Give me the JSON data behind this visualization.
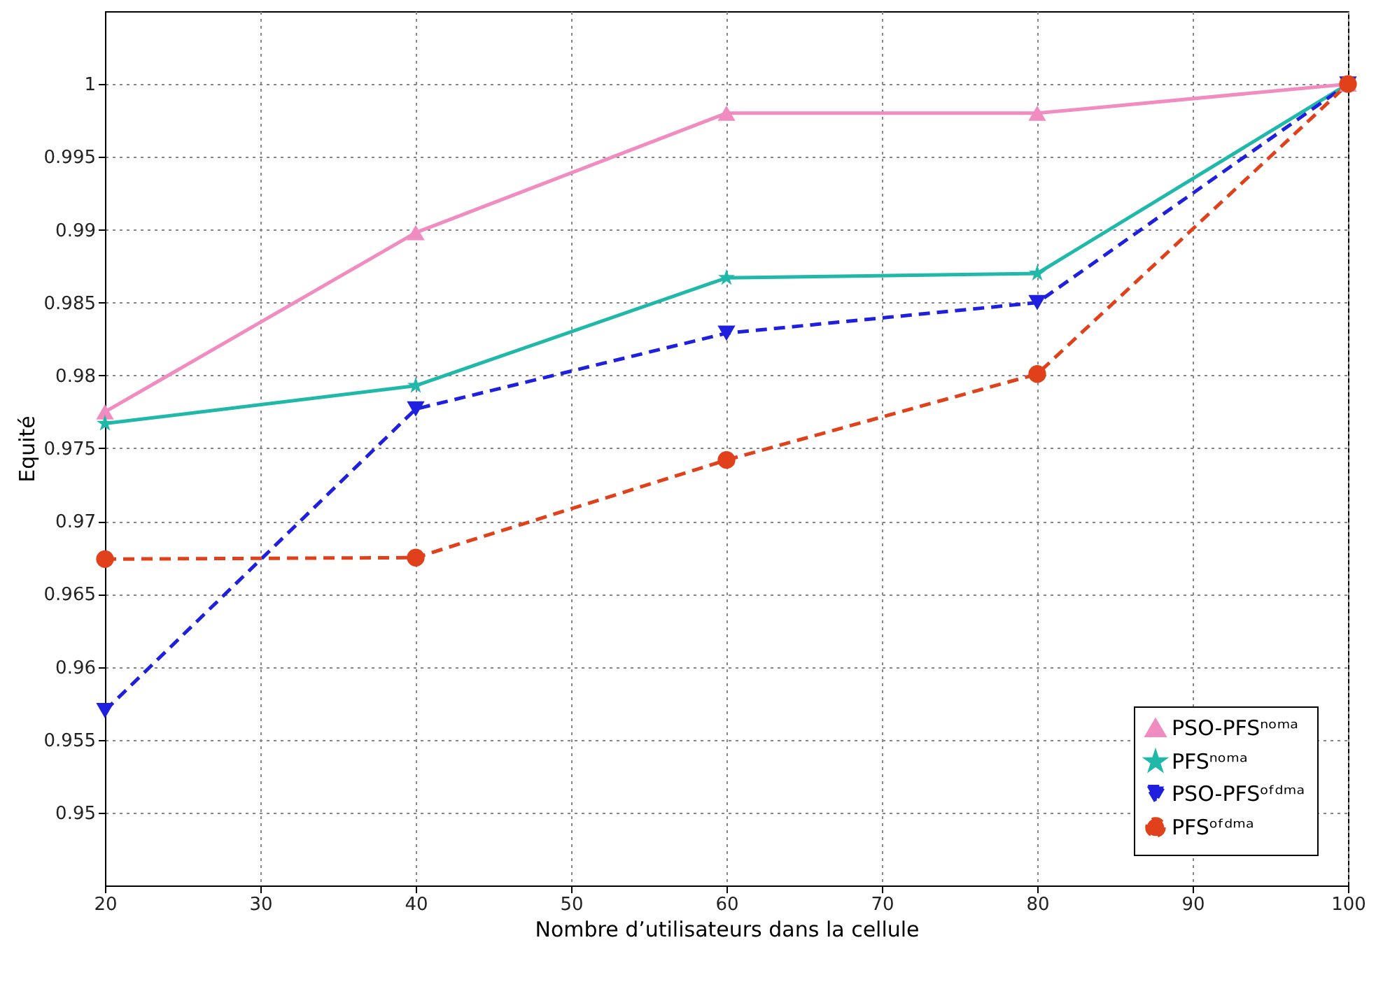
{
  "chart_data": {
    "type": "line",
    "xlabel": "Nombre d’utilisateurs dans la cellule",
    "ylabel": "Equité",
    "x": [
      20,
      40,
      60,
      80,
      100
    ],
    "series": [
      {
        "name": "PSO-PFSⁿᵒᵐᵃ",
        "color": "#f08cc0",
        "marker": "triangle",
        "line_style": "solid",
        "values": [
          0.9775,
          0.9898,
          0.998,
          0.998,
          1
        ]
      },
      {
        "name": "PFSⁿᵒᵐᵃ",
        "color": "#20b8a8",
        "marker": "star",
        "line_style": "solid",
        "values": [
          0.9767,
          0.9793,
          0.9867,
          0.987,
          1
        ]
      },
      {
        "name": "PSO-PFSᵒᶠᵈᵐᵃ",
        "color": "#1f1fe0",
        "marker": "triangle-down",
        "line_style": "dashed",
        "values": [
          0.957,
          0.9777,
          0.9829,
          0.985,
          1
        ]
      },
      {
        "name": "PFSᵒᶠᵈᵐᵃ",
        "color": "#e0401a",
        "marker": "circle",
        "line_style": "dashed",
        "values": [
          0.9674,
          0.9675,
          0.9742,
          0.9801,
          1
        ]
      }
    ],
    "xlim": [
      20,
      100
    ],
    "xticks": [
      20,
      30,
      40,
      50,
      60,
      70,
      80,
      90,
      100
    ],
    "ylim": [
      0.945,
      1.005
    ],
    "yticks": [
      0.95,
      0.955,
      0.96,
      0.965,
      0.97,
      0.975,
      0.98,
      0.985,
      0.99,
      0.995,
      1
    ],
    "grid": true,
    "legend": "bottom right"
  }
}
